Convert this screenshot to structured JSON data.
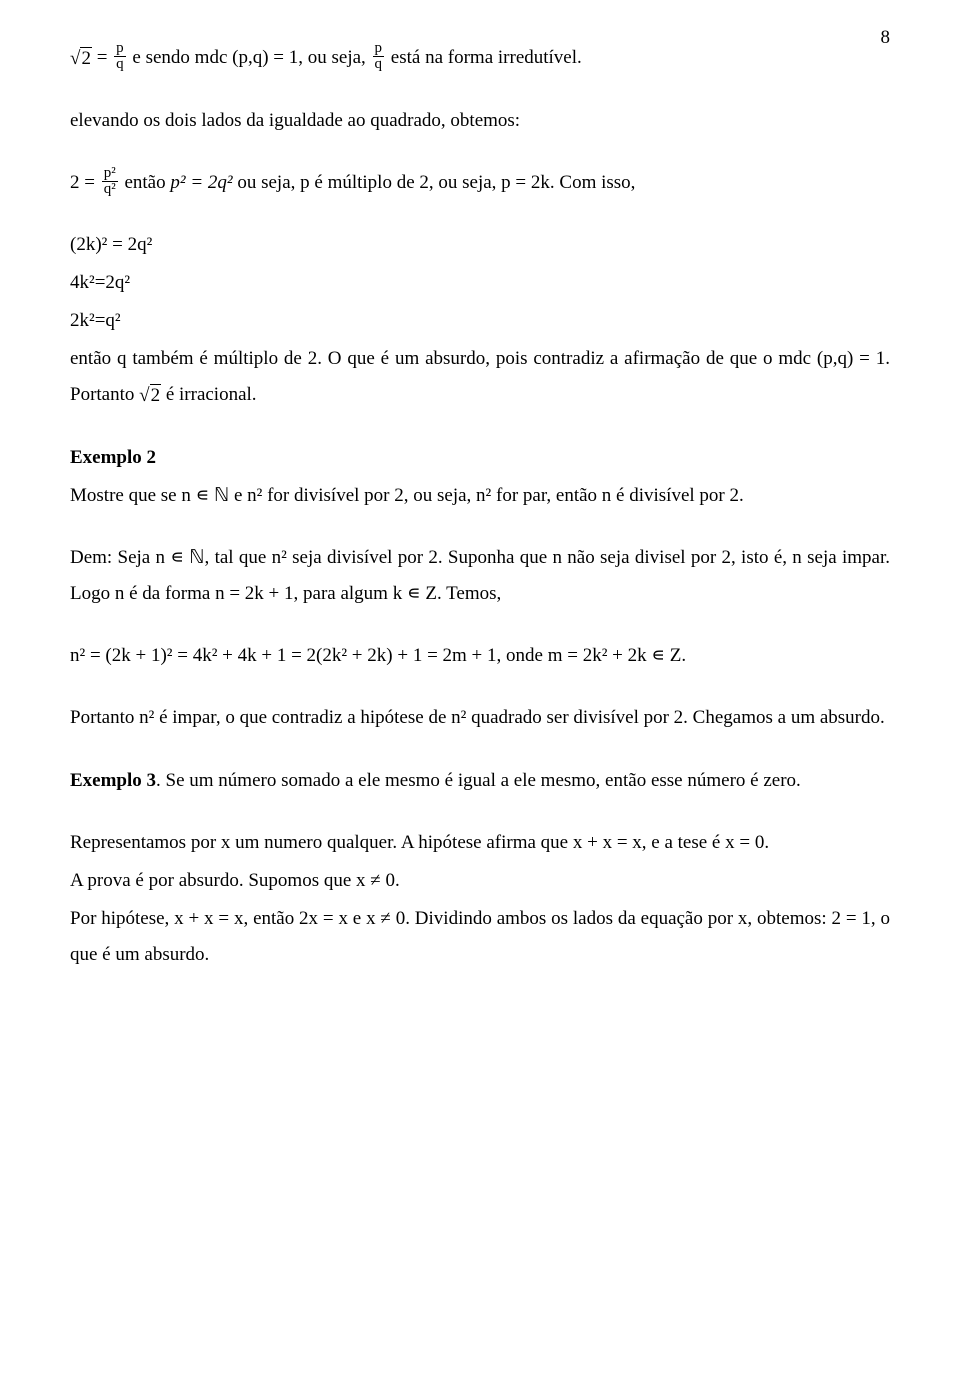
{
  "page_number": "8",
  "colors": {
    "text": "#000000",
    "background": "#ffffff"
  },
  "typography": {
    "base_family": "Times New Roman",
    "base_size_pt": 14,
    "line_height": 1.9
  },
  "t01a": " = ",
  "t01b": " e sendo mdc (p,q) = 1, ou seja, ",
  "t01c": " está na forma irredutível.",
  "t02": "elevando os dois lados da igualdade ao quadrado, obtemos:",
  "t03a": "2 = ",
  "t03b": " então ",
  "t03c": " ou seja, p é múltiplo de 2, ou seja,  p = 2k. Com isso,",
  "t04": "(2k)² = 2q²",
  "t05": "4k²=2q²",
  "t06": "2k²=q²",
  "t07a": "então q também é múltiplo de 2. O que é um absurdo, pois contradiz a afirmação de que o mdc (p,q) = 1. Portanto ",
  "t07b": " é irracional.",
  "ex2_title": "Exemplo 2",
  "ex2_l1a": "Mostre que se n ",
  "ex2_l1b": " ℕ e n² for divisível por 2, ou seja, n² for par, então n é divisível por 2.",
  "dem_a": "Dem: Seja n ",
  "dem_b": " ℕ, tal que n² seja divisível por 2. Suponha que n não seja divisel por 2, isto é, n seja impar. Logo n é da forma n = 2k + 1, para algum k ",
  "dem_c": " Z. Temos,",
  "eq_line": " n² = (2k + 1)² = 4k² + 4k + 1 = 2(2k² + 2k) + 1 = 2m + 1, onde m = 2k² + 2k ",
  "eq_line_tail": " Z.",
  "concl": "Portanto n² é impar, o que contradiz a hipótese de n² quadrado ser divisível por 2. Chegamos a um absurdo.",
  "ex3_title": "Exemplo 3",
  "ex3_body": ". Se um número somado a ele mesmo é igual a ele mesmo, então esse número é zero.",
  "rep1": "Representamos por x um numero qualquer. A hipótese afirma que x + x = x, e a tese é x = 0.",
  "rep2": "A prova é por absurdo. Supomos que x ≠ 0.",
  "rep3": "Por hipótese, x + x = x, então 2x = x e x ≠ 0. Dividindo ambos os lados da equação por x, obtemos: 2 = 1, o que é um absurdo.",
  "frac_pq_num": "p",
  "frac_pq_den": "q",
  "frac_p2q2_num": "p²",
  "frac_p2q2_den": "q²",
  "p2eq2q2": "p² = 2q²",
  "sqrt2_rad": "2",
  "in_symbol": "∊"
}
